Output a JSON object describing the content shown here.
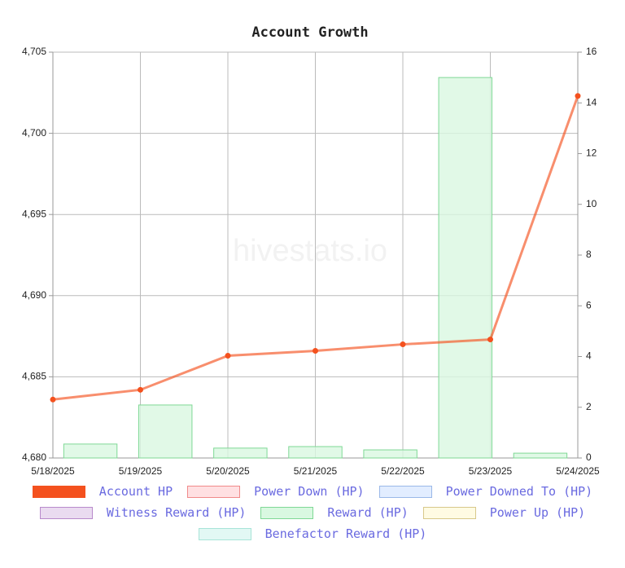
{
  "chart_data": {
    "type": "bar_line",
    "title": "Account Growth",
    "watermark": "hivestats.io",
    "categories": [
      "5/18/2025",
      "5/19/2025",
      "5/20/2025",
      "5/21/2025",
      "5/22/2025",
      "5/23/2025",
      "5/24/2025"
    ],
    "series": [
      {
        "name": "Account HP",
        "type": "line",
        "color": "#f4511e",
        "fill": "#f4511e",
        "values": [
          4683.6,
          4684.2,
          4686.3,
          4686.6,
          4687.0,
          4687.3,
          4702.3
        ]
      },
      {
        "name": "Power Down (HP)",
        "type": "bar",
        "axis": "y2",
        "color": "#f08a8a",
        "fill": "#ffe0e2",
        "values": [
          null,
          null,
          null,
          null,
          null,
          null,
          null
        ]
      },
      {
        "name": "Power Downed To (HP)",
        "type": "bar",
        "axis": "y2",
        "color": "#9ab8e8",
        "fill": "#e2edff",
        "values": [
          null,
          null,
          null,
          null,
          null,
          null,
          null
        ]
      },
      {
        "name": "Witness Reward (HP)",
        "type": "bar",
        "axis": "y2",
        "color": "#b88acb",
        "fill": "#eadbf0",
        "values": [
          null,
          null,
          null,
          null,
          null,
          null,
          null
        ]
      },
      {
        "name": "Reward (HP)",
        "type": "bar",
        "axis": "y2",
        "color": "#7fd895",
        "fill": "#d9f8e1",
        "values": [
          0.55,
          2.09,
          0.39,
          0.45,
          0.32,
          15.0,
          0.19
        ]
      },
      {
        "name": "Power Up (HP)",
        "type": "bar",
        "axis": "y2",
        "color": "#d8c88a",
        "fill": "#fffbe3",
        "values": [
          null,
          null,
          null,
          null,
          null,
          null,
          null
        ]
      },
      {
        "name": "Benefactor Reward (HP)",
        "type": "bar",
        "axis": "y2",
        "color": "#a8e4d8",
        "fill": "#e2f8f4",
        "values": [
          null,
          null,
          null,
          null,
          null,
          null,
          null
        ]
      }
    ],
    "ylim": [
      4680,
      4705
    ],
    "yticks": [
      {
        "value": 4680,
        "label": "4,680"
      },
      {
        "value": 4685,
        "label": "4,685"
      },
      {
        "value": 4690,
        "label": "4,690"
      },
      {
        "value": 4695,
        "label": "4,695"
      },
      {
        "value": 4700,
        "label": "4,700"
      },
      {
        "value": 4705,
        "label": "4,705"
      }
    ],
    "y2lim": [
      0,
      16
    ],
    "y2ticks": [
      0,
      2,
      4,
      6,
      8,
      10,
      12,
      14,
      16
    ],
    "grid": true
  }
}
